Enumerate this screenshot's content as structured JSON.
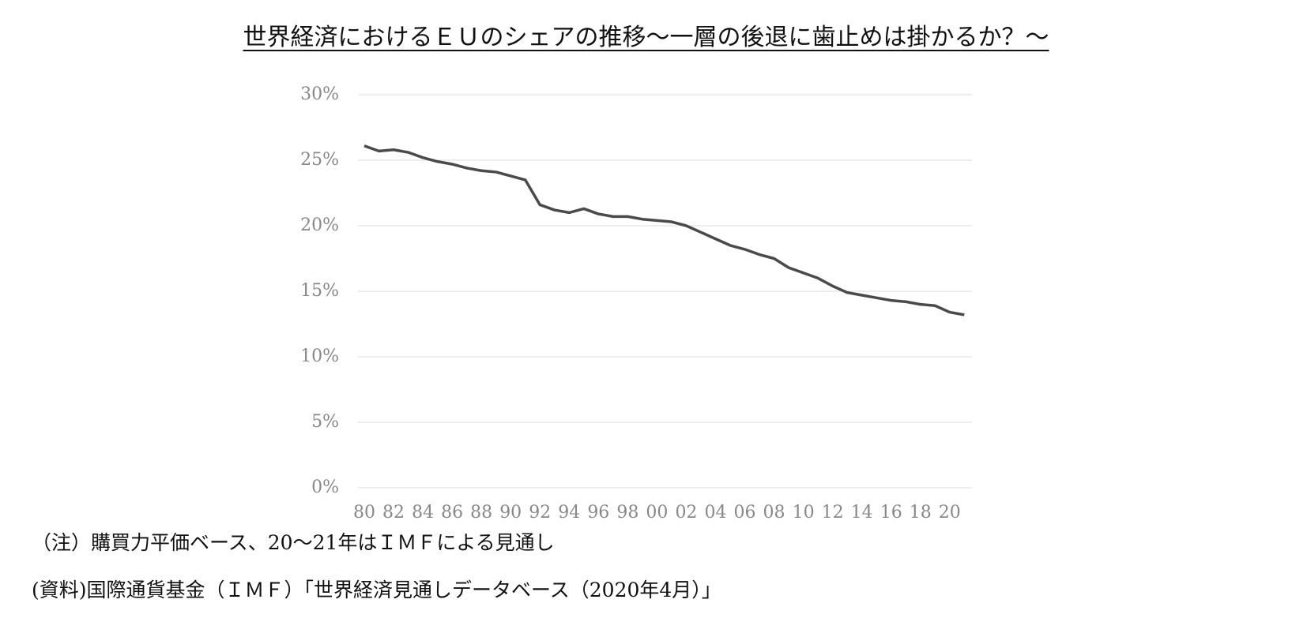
{
  "chart_data": {
    "type": "line",
    "title": "世界経済におけるＥＵのシェアの推移～一層の後退に歯止めは掛かるか？～",
    "notes": [
      "（注）購買力平価ベース、20～21年はＩＭＦによる見通し",
      "(資料)国際通貨基金（ＩＭＦ）「世界経済見通しデータベース（2020年4月）」"
    ],
    "categories": [
      "80",
      null,
      "82",
      null,
      "84",
      null,
      "86",
      null,
      "88",
      null,
      "90",
      null,
      "92",
      null,
      "94",
      null,
      "96",
      null,
      "98",
      null,
      "00",
      null,
      "02",
      null,
      "04",
      null,
      "06",
      null,
      "08",
      null,
      "10",
      null,
      "12",
      null,
      "14",
      null,
      "16",
      null,
      "18",
      null,
      "20",
      null
    ],
    "values": [
      26.1,
      25.7,
      25.8,
      25.6,
      25.2,
      24.9,
      24.7,
      24.4,
      24.2,
      24.1,
      23.8,
      23.5,
      21.6,
      21.2,
      21.0,
      21.3,
      20.9,
      20.7,
      20.7,
      20.5,
      20.4,
      20.3,
      20.0,
      19.5,
      19.0,
      18.5,
      18.2,
      17.8,
      17.5,
      16.8,
      16.4,
      16.0,
      15.4,
      14.9,
      14.7,
      14.5,
      14.3,
      14.2,
      14.0,
      13.9,
      13.4,
      13.2
    ],
    "color": "#4a4a4a",
    "ylim": [
      0,
      30
    ],
    "yticks": [
      {
        "value": 0,
        "label": "0%"
      },
      {
        "value": 5,
        "label": "5%"
      },
      {
        "value": 10,
        "label": "10%"
      },
      {
        "value": 15,
        "label": "15%"
      },
      {
        "value": 20,
        "label": "20%"
      },
      {
        "value": 25,
        "label": "25%"
      },
      {
        "value": 30,
        "label": "30%"
      }
    ],
    "grid": true
  }
}
